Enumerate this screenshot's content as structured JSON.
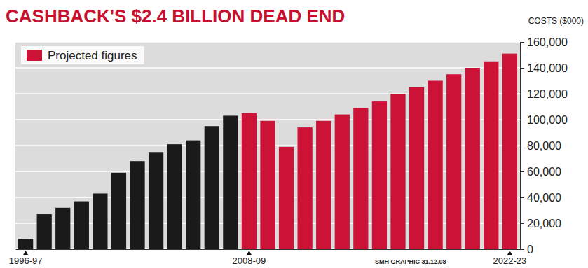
{
  "chart_data": {
    "type": "bar",
    "title": "CASHBACK'S $2.4 BILLION DEAD END",
    "y_label": "COSTS ($000)",
    "source": "SMH GRAPHIC 31.12.08",
    "categories": [
      "1996-97",
      null,
      null,
      null,
      null,
      null,
      null,
      null,
      null,
      null,
      null,
      null,
      "2008-09",
      null,
      null,
      null,
      null,
      null,
      null,
      null,
      null,
      null,
      null,
      null,
      null,
      null,
      "2022-23"
    ],
    "series": [
      {
        "color": "#1a1a1a",
        "values": [
          8000,
          27000,
          32000,
          37000,
          43000,
          59000,
          68000,
          75000,
          81000,
          84000,
          95000,
          103000,
          null,
          null,
          null,
          null,
          null,
          null,
          null,
          null,
          null,
          null,
          null,
          null,
          null,
          null,
          null
        ]
      },
      {
        "name": "Projected figures",
        "color": "#cc1236",
        "values": [
          null,
          null,
          null,
          null,
          null,
          null,
          null,
          null,
          null,
          null,
          null,
          null,
          105000,
          99000,
          79000,
          94000,
          99000,
          104000,
          109000,
          114000,
          120000,
          125000,
          130000,
          135000,
          140000,
          145000,
          151000
        ]
      }
    ],
    "ylim": [
      0,
      160000
    ],
    "yticks": [
      0,
      {
        "value": 20000,
        "label": "20,000"
      },
      {
        "value": 40000,
        "label": "40,000"
      },
      {
        "value": 60000,
        "label": "60,000"
      },
      {
        "value": 80000,
        "label": "80,000"
      },
      {
        "value": 100000,
        "label": "100,000"
      },
      {
        "value": 120000,
        "label": "120,000"
      },
      {
        "value": 140000,
        "label": "140,000"
      },
      {
        "value": 160000,
        "label": "160,000"
      }
    ],
    "grid": true,
    "legend": "top-left"
  }
}
